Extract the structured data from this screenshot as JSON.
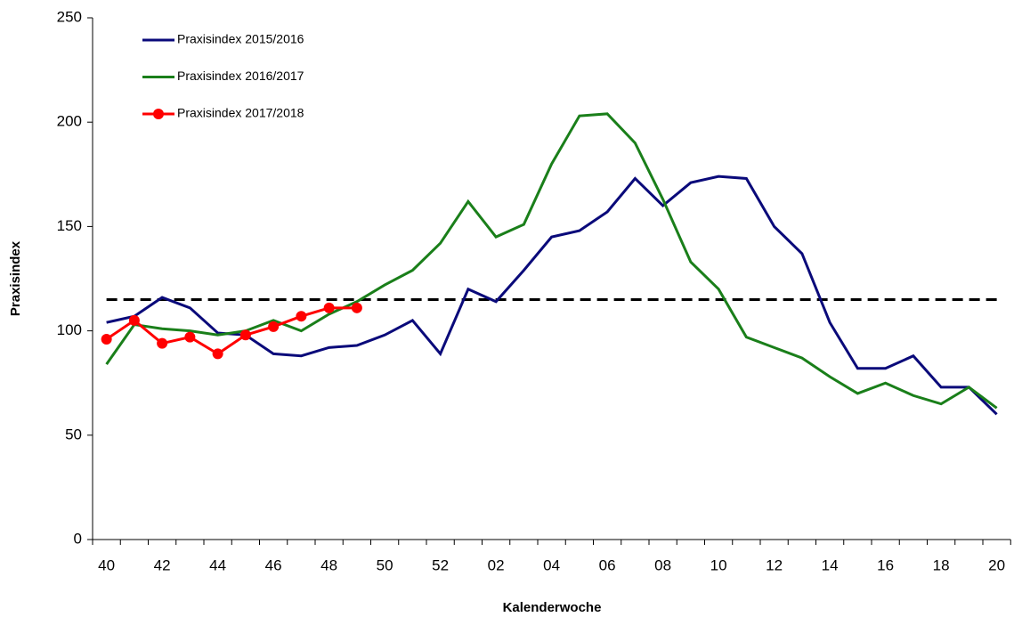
{
  "chart_data": {
    "type": "line",
    "x_label": "Kalenderwoche",
    "y_label": "Praxisindex",
    "categories": [
      "40",
      null,
      "42",
      null,
      "44",
      null,
      "46",
      null,
      "48",
      null,
      "50",
      null,
      "52",
      null,
      "02",
      null,
      "04",
      null,
      "06",
      null,
      "08",
      null,
      "10",
      null,
      "12",
      null,
      "14",
      null,
      "16",
      null,
      "18",
      null,
      "20"
    ],
    "series": [
      {
        "name": "Praxisindex 2015/2016",
        "color": "#0a0a7a",
        "marker": false,
        "values": [
          104,
          107,
          116,
          111,
          99,
          98,
          89,
          88,
          92,
          93,
          98,
          105,
          89,
          120,
          114,
          129,
          145,
          148,
          157,
          173,
          160,
          171,
          174,
          173,
          150,
          137,
          104,
          82,
          82,
          88,
          73,
          73,
          60
        ]
      },
      {
        "name": "Praxisindex 2016/2017",
        "color": "#1a7f1a",
        "marker": false,
        "values": [
          84,
          103,
          101,
          100,
          98,
          100,
          105,
          100,
          108,
          114,
          122,
          129,
          142,
          162,
          145,
          151,
          180,
          203,
          204,
          190,
          163,
          133,
          120,
          97,
          92,
          87,
          78,
          70,
          75,
          69,
          65,
          73,
          63
        ]
      },
      {
        "name": "Praxisindex 2017/2018",
        "color": "#ff0000",
        "marker": true,
        "values": [
          96,
          105,
          94,
          97,
          89,
          98,
          102,
          107,
          111,
          111,
          null,
          null,
          null,
          null,
          null,
          null,
          null,
          null,
          null,
          null,
          null,
          null,
          null,
          null,
          null,
          null,
          null,
          null,
          null,
          null,
          null,
          null,
          null
        ]
      }
    ],
    "threshold": 115,
    "ylim": [
      0,
      250
    ],
    "yticks": [
      0,
      50,
      100,
      150,
      200,
      250
    ]
  }
}
